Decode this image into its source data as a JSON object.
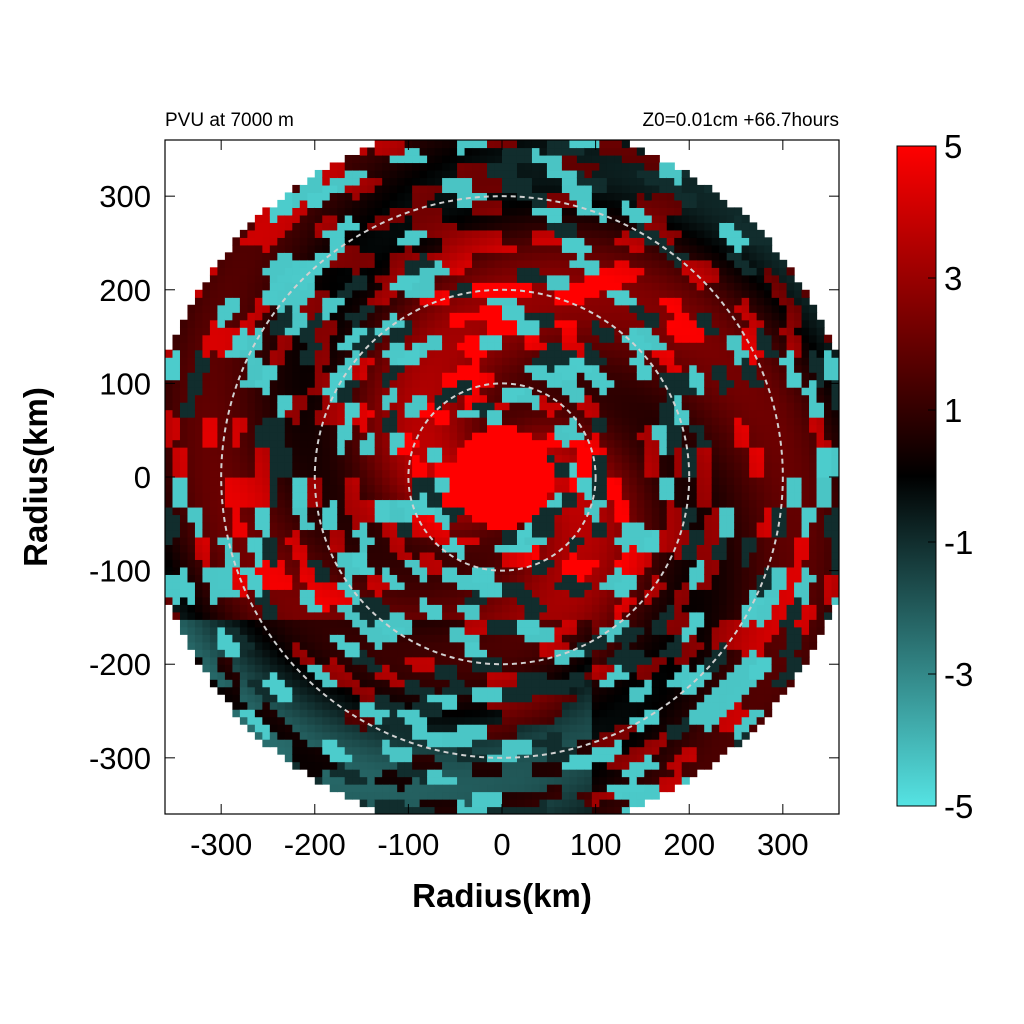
{
  "chart_data": {
    "type": "heatmap",
    "title_left": "PVU at  7000 m",
    "title_right": "Z0=0.01cm  +66.7hours",
    "xlabel": "Radius(km)",
    "ylabel": "Radius(km)",
    "xlim": [
      -360,
      360
    ],
    "ylim": [
      -360,
      360
    ],
    "x_ticks": [
      -300,
      -200,
      -100,
      0,
      100,
      200,
      300
    ],
    "y_ticks": [
      300,
      200,
      100,
      0,
      -100,
      -200,
      -300
    ],
    "data_domain": "disk",
    "domain_radius": 380,
    "reference_circles": [
      100,
      200,
      300
    ],
    "grid": false,
    "colorbar": {
      "placement": "right",
      "min": -5,
      "max": 5,
      "ticks": [
        5,
        3,
        1,
        -1,
        -3,
        -5
      ],
      "colors": {
        "min": "#55e3e3",
        "mid": "#000000",
        "max": "#ff0000"
      }
    }
  }
}
